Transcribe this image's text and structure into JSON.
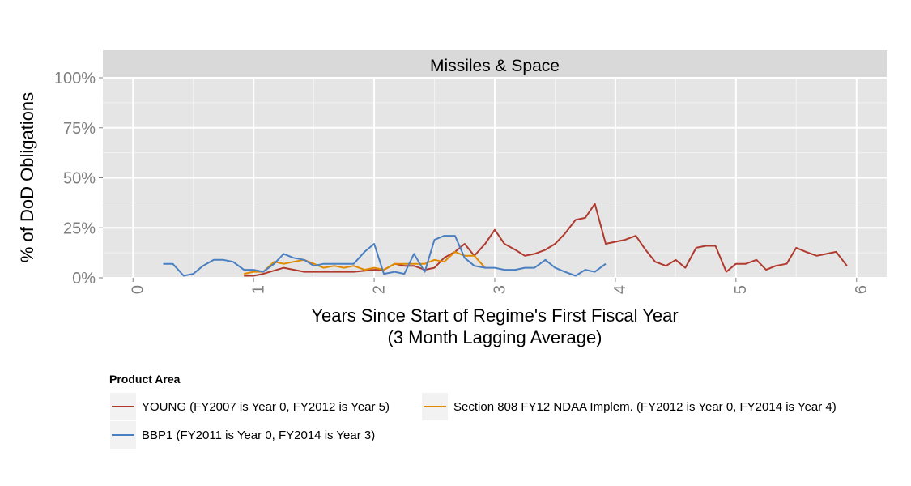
{
  "chart_data": {
    "type": "line",
    "panel_title": "Missiles & Space",
    "xlabel_line1": "Years Since Start of Regime's First Fiscal Year",
    "xlabel_line2": "(3 Month Lagging Average)",
    "ylabel": "% of DoD Obligations",
    "xlim": [
      -0.25,
      6.25
    ],
    "ylim": [
      0,
      100
    ],
    "x_ticks": [
      0,
      1,
      2,
      3,
      4,
      5,
      6
    ],
    "x_tick_labels": [
      "0",
      "1",
      "2",
      "3",
      "4",
      "5",
      "6"
    ],
    "y_ticks": [
      0,
      25,
      50,
      75,
      100
    ],
    "y_tick_labels": [
      "0%",
      "25%",
      "50%",
      "75%",
      "100%"
    ],
    "grid": true,
    "legend_title": "Product Area",
    "legend_position": "bottom",
    "series": [
      {
        "name": "YOUNG (FY2007 is Year 0, FY2012 is Year 5)",
        "color": "#b03a2e",
        "x": [
          0.92,
          1.0,
          1.08,
          1.25,
          1.42,
          1.58,
          1.67,
          1.83,
          2.0,
          2.08,
          2.17,
          2.25,
          2.33,
          2.42,
          2.5,
          2.58,
          2.67,
          2.75,
          2.83,
          2.92,
          3.0,
          3.08,
          3.17,
          3.25,
          3.33,
          3.42,
          3.5,
          3.58,
          3.67,
          3.75,
          3.83,
          3.92,
          4.0,
          4.08,
          4.17,
          4.25,
          4.33,
          4.42,
          4.5,
          4.58,
          4.67,
          4.75,
          4.83,
          4.92,
          5.0,
          5.08,
          5.17,
          5.25,
          5.33,
          5.42,
          5.5,
          5.58,
          5.67,
          5.75,
          5.83,
          5.92
        ],
        "values": [
          1,
          1,
          2,
          5,
          3,
          3,
          3,
          3,
          4,
          4,
          7,
          6,
          6,
          4,
          5,
          10,
          13,
          17,
          11,
          17,
          24,
          17,
          14,
          11,
          12,
          14,
          17,
          22,
          29,
          30,
          37,
          17,
          18,
          19,
          21,
          14,
          8,
          6,
          9,
          5,
          15,
          16,
          16,
          3,
          7,
          7,
          9,
          4,
          6,
          7,
          15,
          13,
          11,
          12,
          13,
          6
        ]
      },
      {
        "name": "Section 808 FY12 NDAA Implem. (FY2012 is Year 0, FY2014 is Year 4)",
        "color": "#e08a00",
        "x": [
          0.92,
          1.0,
          1.08,
          1.17,
          1.25,
          1.33,
          1.42,
          1.5,
          1.58,
          1.67,
          1.75,
          1.83,
          1.92,
          2.0,
          2.08,
          2.17,
          2.25,
          2.33,
          2.42,
          2.5,
          2.58,
          2.67,
          2.75,
          2.83,
          2.92
        ],
        "values": [
          2,
          3,
          3,
          8,
          7,
          8,
          9,
          7,
          5,
          6,
          5,
          6,
          4,
          5,
          4,
          7,
          7,
          7,
          7,
          9,
          8,
          13,
          11,
          11,
          5
        ]
      },
      {
        "name": "BBP1 (FY2011 is Year 0, FY2014 is Year 3)",
        "color": "#4a7fc1",
        "x": [
          0.25,
          0.33,
          0.42,
          0.5,
          0.58,
          0.67,
          0.75,
          0.83,
          0.92,
          1.0,
          1.08,
          1.17,
          1.25,
          1.33,
          1.42,
          1.5,
          1.58,
          1.67,
          1.75,
          1.83,
          1.92,
          2.0,
          2.08,
          2.17,
          2.25,
          2.33,
          2.42,
          2.5,
          2.58,
          2.67,
          2.75,
          2.83,
          2.92,
          3.0,
          3.08,
          3.17,
          3.25,
          3.33,
          3.42,
          3.5,
          3.58,
          3.67,
          3.75,
          3.83,
          3.92
        ],
        "values": [
          7,
          7,
          1,
          2,
          6,
          9,
          9,
          8,
          4,
          4,
          3,
          7,
          12,
          10,
          9,
          6,
          7,
          7,
          7,
          7,
          13,
          17,
          2,
          3,
          2,
          12,
          3,
          19,
          21,
          21,
          10,
          6,
          5,
          5,
          4,
          4,
          5,
          5,
          9,
          5,
          3,
          1,
          4,
          3,
          7
        ]
      }
    ]
  }
}
